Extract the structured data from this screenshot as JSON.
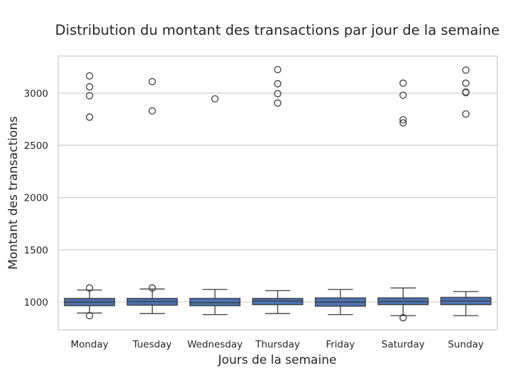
{
  "chart_data": {
    "type": "box",
    "title": "Distribution du montant des transactions par jour de la semaine",
    "xlabel": "Jours de la semaine",
    "ylabel": "Montant des transactions",
    "ylim": [
      735,
      3355
    ],
    "yticks": [
      1000,
      1500,
      2000,
      2500,
      3000
    ],
    "grid": "horizontal",
    "box_color": "#4c72b0",
    "line_color": "#3d3d3d",
    "categories": [
      "Monday",
      "Tuesday",
      "Wednesday",
      "Thursday",
      "Friday",
      "Saturday",
      "Sunday"
    ],
    "boxes": [
      {
        "whislo": 895,
        "q1": 965,
        "med": 1000,
        "q3": 1035,
        "whishi": 1115,
        "fliers": [
          870,
          1135,
          2770,
          2975,
          3060,
          3165
        ]
      },
      {
        "whislo": 890,
        "q1": 970,
        "med": 1005,
        "q3": 1035,
        "whishi": 1125,
        "fliers": [
          1135,
          2830,
          3110
        ]
      },
      {
        "whislo": 880,
        "q1": 965,
        "med": 995,
        "q3": 1035,
        "whishi": 1120,
        "fliers": [
          2945
        ]
      },
      {
        "whislo": 890,
        "q1": 975,
        "med": 1010,
        "q3": 1035,
        "whishi": 1110,
        "fliers": [
          2905,
          2995,
          3090,
          3225
        ]
      },
      {
        "whislo": 880,
        "q1": 960,
        "med": 1000,
        "q3": 1040,
        "whishi": 1120,
        "fliers": []
      },
      {
        "whislo": 870,
        "q1": 975,
        "med": 1005,
        "q3": 1040,
        "whishi": 1135,
        "fliers": [
          850,
          2715,
          2745,
          2980,
          3095
        ]
      },
      {
        "whislo": 870,
        "q1": 975,
        "med": 1010,
        "q3": 1045,
        "whishi": 1100,
        "fliers": [
          2800,
          3005,
          3010,
          3095,
          3220
        ]
      }
    ]
  }
}
